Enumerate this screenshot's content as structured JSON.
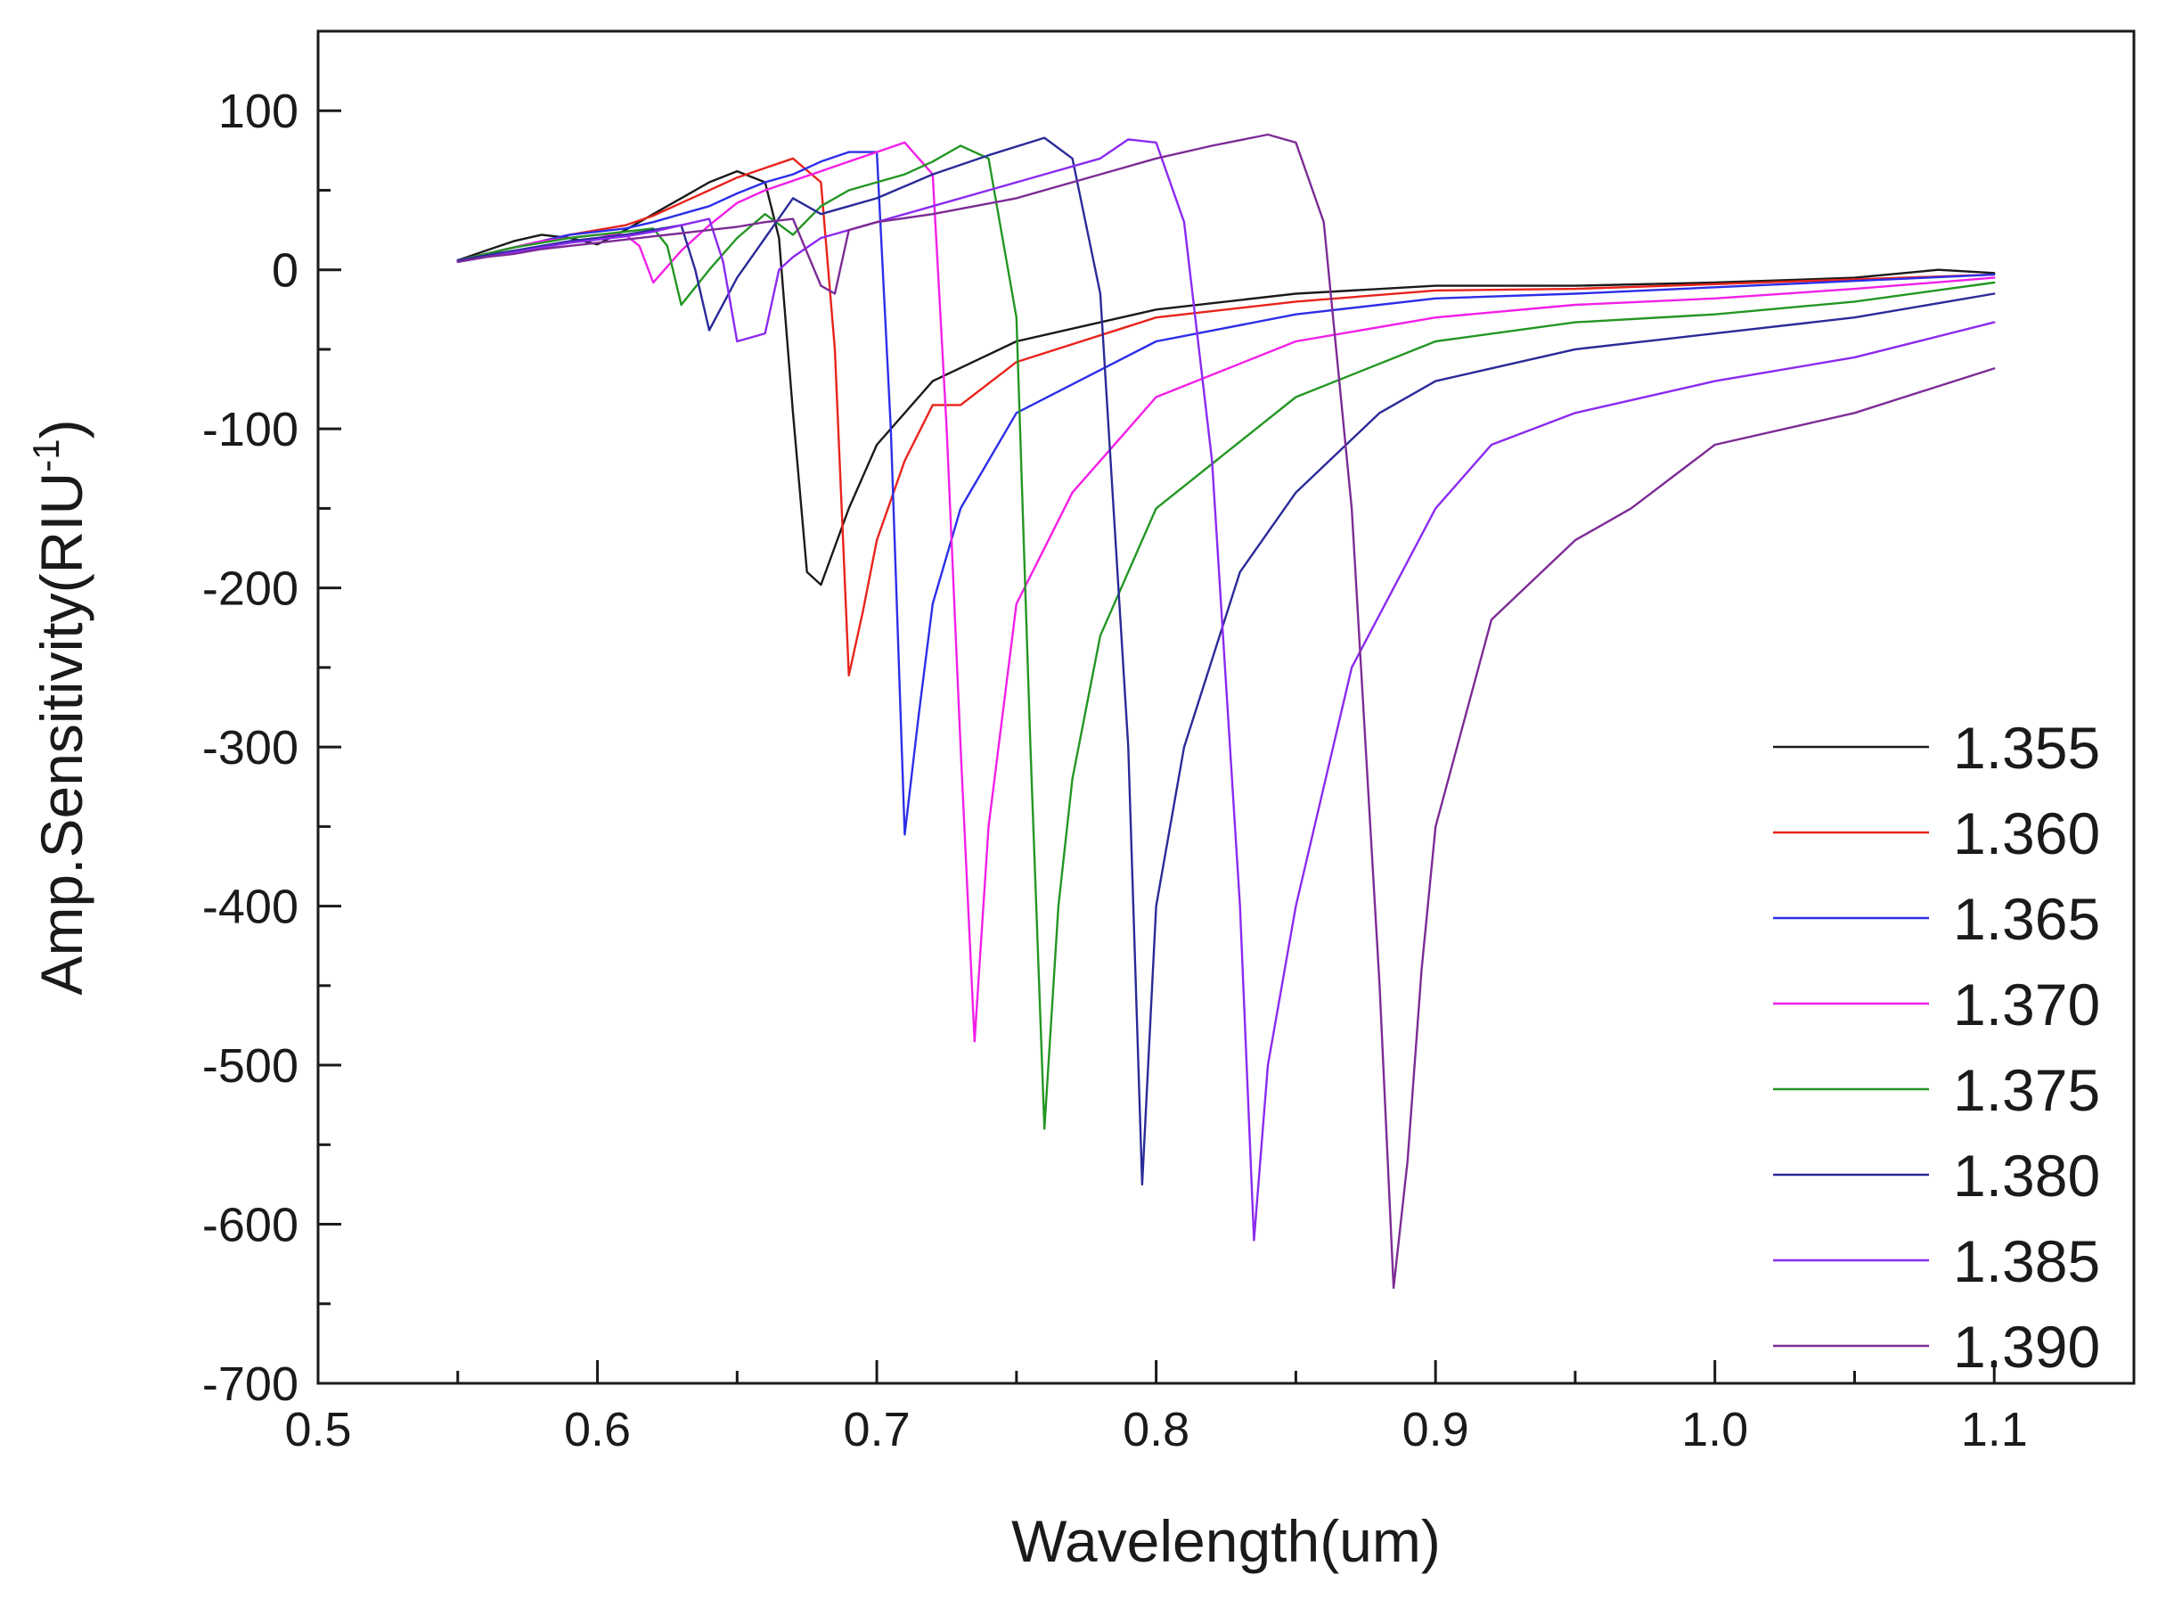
{
  "chart_data": {
    "type": "line",
    "title": "",
    "xlabel": "Wavelength(um)",
    "ylabel_main": "Amp.Sensitivity(RIU",
    "ylabel_sup": "-1",
    "ylabel_close": ")",
    "xlim": [
      0.5,
      1.15
    ],
    "ylim": [
      -700,
      150
    ],
    "xticks": [
      0.5,
      0.6,
      0.7,
      0.8,
      0.9,
      1.0,
      1.1
    ],
    "xtick_labels": [
      "0.5",
      "0.6",
      "0.7",
      "0.8",
      "0.9",
      "1.0",
      "1.1"
    ],
    "yticks": [
      100,
      0,
      -100,
      -200,
      -300,
      -400,
      -500,
      -600,
      -700
    ],
    "ytick_labels": [
      "100",
      "0",
      "-100",
      "-200",
      "-300",
      "-400",
      "-500",
      "-600",
      "-700"
    ],
    "legend_position": "bottom-right",
    "series": [
      {
        "name": "1.355",
        "color": "#1a1a1a",
        "x": [
          0.55,
          0.56,
          0.57,
          0.58,
          0.59,
          0.6,
          0.61,
          0.62,
          0.63,
          0.64,
          0.65,
          0.66,
          0.665,
          0.67,
          0.675,
          0.68,
          0.69,
          0.7,
          0.72,
          0.75,
          0.8,
          0.85,
          0.9,
          0.95,
          1.0,
          1.05,
          1.08,
          1.1
        ],
        "y": [
          6,
          12,
          18,
          22,
          20,
          16,
          25,
          35,
          45,
          55,
          62,
          55,
          20,
          -90,
          -190,
          -198,
          -150,
          -110,
          -70,
          -45,
          -25,
          -15,
          -10,
          -10,
          -8,
          -5,
          0,
          -2
        ]
      },
      {
        "name": "1.360",
        "color": "#e8231c",
        "x": [
          0.55,
          0.56,
          0.57,
          0.58,
          0.59,
          0.6,
          0.61,
          0.62,
          0.63,
          0.64,
          0.65,
          0.66,
          0.67,
          0.68,
          0.685,
          0.69,
          0.695,
          0.7,
          0.71,
          0.72,
          0.73,
          0.75,
          0.8,
          0.85,
          0.9,
          0.95,
          1.0,
          1.05,
          1.1
        ],
        "y": [
          6,
          10,
          14,
          18,
          22,
          25,
          28,
          34,
          42,
          50,
          58,
          64,
          70,
          55,
          -50,
          -255,
          -215,
          -170,
          -120,
          -85,
          -85,
          -58,
          -30,
          -20,
          -13,
          -12,
          -9,
          -6,
          -3
        ]
      },
      {
        "name": "1.365",
        "color": "#2b2ee8",
        "x": [
          0.55,
          0.56,
          0.57,
          0.58,
          0.59,
          0.6,
          0.61,
          0.62,
          0.63,
          0.64,
          0.65,
          0.66,
          0.67,
          0.68,
          0.69,
          0.7,
          0.705,
          0.71,
          0.715,
          0.72,
          0.73,
          0.75,
          0.8,
          0.85,
          0.9,
          0.95,
          1.0,
          1.05,
          1.1
        ],
        "y": [
          6,
          10,
          14,
          18,
          22,
          24,
          26,
          30,
          35,
          40,
          48,
          55,
          60,
          68,
          74,
          74,
          -100,
          -355,
          -280,
          -210,
          -150,
          -90,
          -45,
          -28,
          -18,
          -15,
          -11,
          -7,
          -3
        ]
      },
      {
        "name": "1.370",
        "color": "#f21fe8",
        "x": [
          0.55,
          0.56,
          0.57,
          0.58,
          0.59,
          0.6,
          0.61,
          0.615,
          0.62,
          0.63,
          0.64,
          0.65,
          0.66,
          0.67,
          0.68,
          0.69,
          0.7,
          0.71,
          0.72,
          0.725,
          0.73,
          0.735,
          0.74,
          0.75,
          0.77,
          0.8,
          0.85,
          0.9,
          0.95,
          1.0,
          1.05,
          1.1
        ],
        "y": [
          6,
          10,
          14,
          18,
          20,
          22,
          22,
          15,
          -8,
          12,
          28,
          42,
          50,
          56,
          62,
          68,
          74,
          80,
          60,
          -100,
          -300,
          -485,
          -350,
          -210,
          -140,
          -80,
          -45,
          -30,
          -22,
          -18,
          -12,
          -5
        ]
      },
      {
        "name": "1.375",
        "color": "#239623",
        "x": [
          0.55,
          0.56,
          0.57,
          0.58,
          0.59,
          0.6,
          0.61,
          0.62,
          0.625,
          0.63,
          0.64,
          0.65,
          0.66,
          0.67,
          0.68,
          0.69,
          0.7,
          0.71,
          0.72,
          0.73,
          0.74,
          0.75,
          0.755,
          0.76,
          0.765,
          0.77,
          0.78,
          0.8,
          0.85,
          0.9,
          0.95,
          1.0,
          1.05,
          1.1
        ],
        "y": [
          6,
          10,
          14,
          17,
          20,
          22,
          24,
          26,
          15,
          -22,
          0,
          20,
          35,
          22,
          40,
          50,
          55,
          60,
          68,
          78,
          70,
          -30,
          -300,
          -540,
          -400,
          -320,
          -230,
          -150,
          -80,
          -45,
          -33,
          -28,
          -20,
          -8
        ]
      },
      {
        "name": "1.380",
        "color": "#2a2a99",
        "x": [
          0.55,
          0.56,
          0.57,
          0.58,
          0.59,
          0.6,
          0.61,
          0.62,
          0.63,
          0.635,
          0.64,
          0.65,
          0.66,
          0.67,
          0.68,
          0.69,
          0.7,
          0.72,
          0.74,
          0.76,
          0.77,
          0.78,
          0.79,
          0.795,
          0.8,
          0.81,
          0.83,
          0.85,
          0.88,
          0.9,
          0.95,
          1.0,
          1.05,
          1.1
        ],
        "y": [
          6,
          9,
          12,
          15,
          18,
          20,
          22,
          25,
          28,
          0,
          -38,
          -5,
          20,
          45,
          35,
          40,
          45,
          60,
          72,
          83,
          70,
          -15,
          -300,
          -575,
          -400,
          -300,
          -190,
          -140,
          -90,
          -70,
          -50,
          -40,
          -30,
          -15
        ]
      },
      {
        "name": "1.385",
        "color": "#8b2af0",
        "x": [
          0.55,
          0.56,
          0.57,
          0.58,
          0.59,
          0.6,
          0.61,
          0.62,
          0.63,
          0.64,
          0.645,
          0.65,
          0.66,
          0.665,
          0.67,
          0.68,
          0.7,
          0.72,
          0.74,
          0.76,
          0.78,
          0.79,
          0.8,
          0.81,
          0.82,
          0.83,
          0.835,
          0.84,
          0.85,
          0.87,
          0.9,
          0.92,
          0.95,
          1.0,
          1.05,
          1.1
        ],
        "y": [
          5,
          8,
          11,
          14,
          17,
          19,
          21,
          24,
          28,
          32,
          5,
          -45,
          -40,
          0,
          8,
          20,
          30,
          40,
          50,
          60,
          70,
          82,
          80,
          30,
          -120,
          -400,
          -610,
          -500,
          -400,
          -250,
          -150,
          -110,
          -90,
          -70,
          -55,
          -33
        ]
      },
      {
        "name": "1.390",
        "color": "#7d2b96",
        "x": [
          0.55,
          0.56,
          0.57,
          0.58,
          0.59,
          0.6,
          0.61,
          0.62,
          0.63,
          0.64,
          0.65,
          0.66,
          0.67,
          0.68,
          0.685,
          0.69,
          0.7,
          0.72,
          0.75,
          0.78,
          0.8,
          0.82,
          0.84,
          0.85,
          0.86,
          0.87,
          0.88,
          0.885,
          0.89,
          0.895,
          0.9,
          0.92,
          0.95,
          0.97,
          1.0,
          1.05,
          1.1
        ],
        "y": [
          5,
          8,
          10,
          13,
          15,
          17,
          19,
          21,
          23,
          25,
          27,
          30,
          32,
          -10,
          -15,
          25,
          30,
          35,
          45,
          60,
          70,
          78,
          85,
          80,
          30,
          -150,
          -450,
          -640,
          -560,
          -440,
          -350,
          -220,
          -170,
          -150,
          -110,
          -90,
          -62
        ]
      }
    ]
  }
}
